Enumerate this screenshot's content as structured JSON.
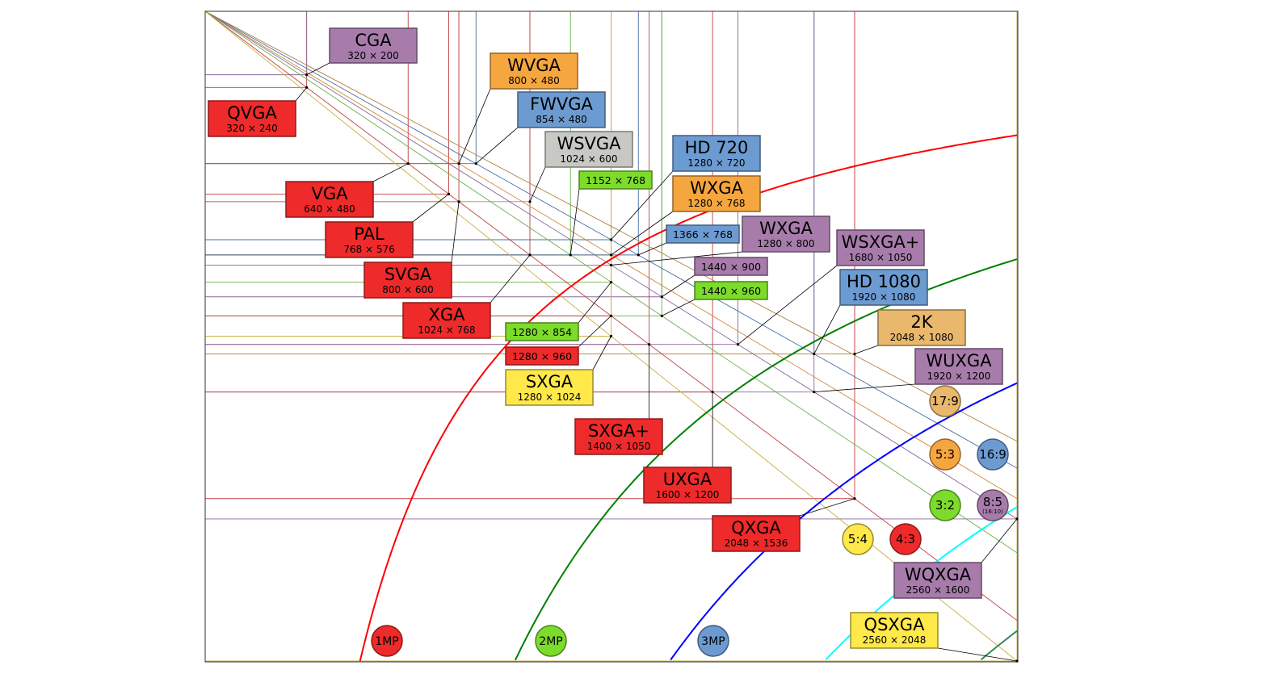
{
  "colors": {
    "red": "#ee2a2a",
    "purple": "#a77cab",
    "orange": "#f6a63f",
    "blue": "#6c9bd1",
    "gray": "#c8c8c4",
    "green": "#7ddb2c",
    "yellow": "#ffe84a",
    "tan": "#e9b86c",
    "curve_1mp": "#ff0000",
    "curve_2mp": "#008000",
    "curve_3mp": "#0000ff",
    "curve_4mp": "#00ffff",
    "curve_5mp": "#2e8b57"
  },
  "resolutions": [
    {
      "id": "qvga",
      "title": "QVGA",
      "sub": "320 × 240",
      "w": 320,
      "h": 240,
      "color": "red"
    },
    {
      "id": "cga",
      "title": "CGA",
      "sub": "320 × 200",
      "w": 320,
      "h": 200,
      "color": "purple"
    },
    {
      "id": "vga",
      "title": "VGA",
      "sub": "640 × 480",
      "w": 640,
      "h": 480,
      "color": "red"
    },
    {
      "id": "wvga",
      "title": "WVGA",
      "sub": "800 × 480",
      "w": 800,
      "h": 480,
      "color": "orange"
    },
    {
      "id": "fwvga",
      "title": "FWVGA",
      "sub": "854 × 480",
      "w": 854,
      "h": 480,
      "color": "blue"
    },
    {
      "id": "pal",
      "title": "PAL",
      "sub": "768 × 576",
      "w": 768,
      "h": 576,
      "color": "red"
    },
    {
      "id": "svga",
      "title": "SVGA",
      "sub": "800 × 600",
      "w": 800,
      "h": 600,
      "color": "red"
    },
    {
      "id": "wsvga",
      "title": "WSVGA",
      "sub": "1024 × 600",
      "w": 1024,
      "h": 600,
      "color": "gray"
    },
    {
      "id": "xga",
      "title": "XGA",
      "sub": "1024 × 768",
      "w": 1024,
      "h": 768,
      "color": "red"
    },
    {
      "id": "r1152",
      "title": "",
      "sub": "1152 × 768",
      "w": 1152,
      "h": 768,
      "color": "green"
    },
    {
      "id": "hd720",
      "title": "HD 720",
      "sub": "1280 × 720",
      "w": 1280,
      "h": 720,
      "color": "blue"
    },
    {
      "id": "wxga768",
      "title": "WXGA",
      "sub": "1280 × 768",
      "w": 1280,
      "h": 768,
      "color": "orange"
    },
    {
      "id": "r1366",
      "title": "",
      "sub": "1366 × 768",
      "w": 1366,
      "h": 768,
      "color": "blue"
    },
    {
      "id": "wxga800",
      "title": "WXGA",
      "sub": "1280 × 800",
      "w": 1280,
      "h": 800,
      "color": "purple"
    },
    {
      "id": "r1440x900",
      "title": "",
      "sub": "1440 × 900",
      "w": 1440,
      "h": 900,
      "color": "purple"
    },
    {
      "id": "r1440x960",
      "title": "",
      "sub": "1440 × 960",
      "w": 1440,
      "h": 960,
      "color": "green"
    },
    {
      "id": "r1280x854",
      "title": "",
      "sub": "1280 × 854",
      "w": 1280,
      "h": 854,
      "color": "green"
    },
    {
      "id": "r1280x960",
      "title": "",
      "sub": "1280 × 960",
      "w": 1280,
      "h": 960,
      "color": "red"
    },
    {
      "id": "sxga",
      "title": "SXGA",
      "sub": "1280 × 1024",
      "w": 1280,
      "h": 1024,
      "color": "yellow"
    },
    {
      "id": "sxgaplus",
      "title": "SXGA+",
      "sub": "1400 × 1050",
      "w": 1400,
      "h": 1050,
      "color": "red"
    },
    {
      "id": "wsxgaplus",
      "title": "WSXGA+",
      "sub": "1680 × 1050",
      "w": 1680,
      "h": 1050,
      "color": "purple"
    },
    {
      "id": "hd1080",
      "title": "HD 1080",
      "sub": "1920 × 1080",
      "w": 1920,
      "h": 1080,
      "color": "blue"
    },
    {
      "id": "twok",
      "title": "2K",
      "sub": "2048 × 1080",
      "w": 2048,
      "h": 1080,
      "color": "tan"
    },
    {
      "id": "wuxga",
      "title": "WUXGA",
      "sub": "1920 × 1200",
      "w": 1920,
      "h": 1200,
      "color": "purple"
    },
    {
      "id": "uxga",
      "title": "UXGA",
      "sub": "1600 × 1200",
      "w": 1600,
      "h": 1200,
      "color": "red"
    },
    {
      "id": "qxga",
      "title": "QXGA",
      "sub": "2048 × 1536",
      "w": 2048,
      "h": 1536,
      "color": "red"
    },
    {
      "id": "wqxga",
      "title": "WQXGA",
      "sub": "2560 × 1600",
      "w": 2560,
      "h": 1600,
      "color": "purple"
    },
    {
      "id": "qsxga",
      "title": "QSXGA",
      "sub": "2560 × 2048",
      "w": 2560,
      "h": 2048,
      "color": "yellow"
    }
  ],
  "aspect_ratios": [
    {
      "id": "r17x9",
      "label": "17:9",
      "sub": "",
      "color": "tan"
    },
    {
      "id": "r5x3",
      "label": "5:3",
      "sub": "",
      "color": "orange"
    },
    {
      "id": "r16x9",
      "label": "16:9",
      "sub": "",
      "color": "blue"
    },
    {
      "id": "r3x2",
      "label": "3:2",
      "sub": "",
      "color": "green"
    },
    {
      "id": "r8x5",
      "label": "8:5",
      "sub": "(16:10)",
      "color": "purple"
    },
    {
      "id": "r5x4",
      "label": "5:4",
      "sub": "",
      "color": "yellow"
    },
    {
      "id": "r4x3",
      "label": "4:3",
      "sub": "",
      "color": "red"
    }
  ],
  "megapixels": [
    {
      "id": "mp1",
      "label": "1MP",
      "mp": 1,
      "color": "red",
      "curve": "curve_1mp"
    },
    {
      "id": "mp2",
      "label": "2MP",
      "mp": 2,
      "color": "green",
      "curve": "curve_2mp"
    },
    {
      "id": "mp3",
      "label": "3MP",
      "mp": 3,
      "color": "blue",
      "curve": "curve_3mp"
    },
    {
      "id": "mp4",
      "label": "",
      "mp": 4,
      "color": "",
      "curve": "curve_4mp"
    },
    {
      "id": "mp5",
      "label": "",
      "mp": 5,
      "color": "",
      "curve": "curve_5mp"
    }
  ]
}
